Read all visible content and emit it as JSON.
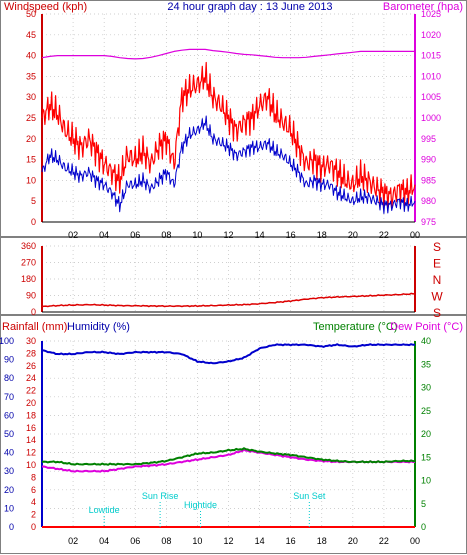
{
  "colors": {
    "wind_gust": "#ff0000",
    "wind_avg": "#0000cc",
    "barometer": "#dd00dd",
    "direction": "#dd0000",
    "rainfall": "#ff0000",
    "humidity": "#0000cc",
    "temperature": "#008000",
    "dew_point": "#dd00dd",
    "tide": "#00cccc",
    "grid": "#c0c0c0"
  },
  "chart_data": [
    {
      "type": "line",
      "title": "24 hour graph day : 13 June 2013",
      "ylabel_left": "Windspeed (kph)",
      "ylabel_right": "Barometer (hpa)",
      "ylim_left": [
        0,
        50
      ],
      "ylim_right": [
        975,
        1025
      ],
      "yticks_left": [
        "50",
        "45",
        "40",
        "35",
        "30",
        "25",
        "20",
        "15",
        "10",
        "5",
        "0"
      ],
      "yticks_right": [
        "1025",
        "1020",
        "1015",
        "1010",
        "1005",
        "1000",
        "995",
        "990",
        "985",
        "980",
        "975"
      ],
      "grid": true,
      "x": [
        0,
        0.5,
        1,
        1.5,
        2,
        2.5,
        3,
        3.5,
        4,
        4.5,
        5,
        5.5,
        6,
        6.5,
        7,
        7.5,
        8,
        8.5,
        9,
        9.5,
        10,
        10.5,
        11,
        11.5,
        12,
        12.5,
        13,
        13.5,
        14,
        14.5,
        15,
        15.5,
        16,
        16.5,
        17,
        17.5,
        18,
        18.5,
        19,
        19.5,
        20,
        20.5,
        21,
        21.5,
        22,
        22.5,
        23,
        23.5,
        24
      ],
      "series": [
        {
          "key": "gust",
          "values": [
            25,
            28,
            26,
            22,
            20,
            18,
            20,
            17,
            14,
            12,
            10,
            16,
            15,
            17,
            14,
            18,
            20,
            14,
            30,
            32,
            33,
            35,
            30,
            28,
            25,
            22,
            24,
            25,
            28,
            30,
            26,
            24,
            22,
            18,
            14,
            15,
            13,
            14,
            12,
            10,
            9,
            11,
            10,
            8,
            7,
            6,
            8,
            7,
            9
          ]
        },
        {
          "key": "avg",
          "values": [
            12,
            16,
            15,
            13,
            12,
            11,
            12,
            10,
            9,
            7,
            4,
            9,
            9,
            10,
            8,
            10,
            12,
            9,
            18,
            21,
            22,
            24,
            20,
            19,
            18,
            16,
            17,
            18,
            18,
            19,
            17,
            16,
            14,
            12,
            9,
            10,
            9,
            9,
            7,
            6,
            5,
            6,
            6,
            5,
            4,
            4,
            5,
            4,
            5
          ]
        },
        {
          "key": "barometer",
          "axis": "right",
          "values": [
            1014.5,
            1014.8,
            1015,
            1015,
            1015,
            1015,
            1015,
            1015,
            1015,
            1014.8,
            1014.5,
            1014.3,
            1014.2,
            1014.3,
            1014.6,
            1015,
            1015.5,
            1016,
            1016.3,
            1016.5,
            1016.5,
            1016.5,
            1016.2,
            1016,
            1015.8,
            1015.5,
            1015.3,
            1015.2,
            1015,
            1014.8,
            1014.6,
            1014.5,
            1014.5,
            1014.5,
            1014.6,
            1014.8,
            1015,
            1015.2,
            1015.4,
            1015.6,
            1015.8,
            1016,
            1016,
            1016,
            1016,
            1016,
            1016,
            1016,
            1016
          ]
        }
      ],
      "xticks": [
        "02",
        "04",
        "06",
        "08",
        "10",
        "12",
        "14",
        "16",
        "18",
        "20",
        "22",
        "00"
      ]
    },
    {
      "type": "line",
      "ylim": [
        0,
        360
      ],
      "yticks": [
        "360",
        "270",
        "180",
        "90",
        "0"
      ],
      "direction_labels": [
        "S",
        "E",
        "N",
        "W",
        "S"
      ],
      "x": [
        0,
        1,
        2,
        3,
        4,
        5,
        6,
        7,
        8,
        9,
        10,
        11,
        12,
        13,
        14,
        15,
        16,
        17,
        18,
        19,
        20,
        21,
        22,
        23,
        24
      ],
      "series": [
        {
          "key": "direction",
          "values": [
            30,
            35,
            38,
            40,
            38,
            35,
            34,
            33,
            32,
            32,
            33,
            35,
            38,
            40,
            45,
            52,
            60,
            70,
            78,
            82,
            85,
            88,
            92,
            95,
            100
          ]
        }
      ]
    },
    {
      "type": "line",
      "ylabel_left": "Rainfall (mm)",
      "ylabel_left2": "Humidity (%)",
      "ylabel_right": "Temperature (°C)",
      "ylabel_right2": "Dew Point (°C)",
      "ylim_left": [
        0,
        30
      ],
      "ylim_humidity": [
        0,
        100
      ],
      "ylim_right": [
        0,
        40
      ],
      "yticks_rain": [
        "30",
        "28",
        "26",
        "24",
        "22",
        "20",
        "18",
        "16",
        "14",
        "12",
        "10",
        "8",
        "6",
        "4",
        "2",
        "0"
      ],
      "yticks_humidity": [
        "100",
        "90",
        "80",
        "70",
        "60",
        "50",
        "40",
        "30",
        "20",
        "10",
        "0"
      ],
      "yticks_right": [
        "40",
        "35",
        "30",
        "25",
        "20",
        "15",
        "10",
        "5",
        "0"
      ],
      "x": [
        0,
        1,
        2,
        3,
        4,
        5,
        6,
        7,
        8,
        9,
        10,
        11,
        12,
        13,
        14,
        15,
        16,
        17,
        18,
        19,
        20,
        21,
        22,
        23,
        24
      ],
      "series": [
        {
          "key": "humidity",
          "axis": "humidity",
          "values": [
            95,
            93,
            93,
            94,
            94,
            93,
            94,
            94,
            94,
            93,
            89,
            88,
            89,
            91,
            96,
            98,
            98,
            98,
            97,
            98,
            97,
            98,
            98,
            98,
            98
          ]
        },
        {
          "key": "temperature",
          "axis": "right",
          "values": [
            14,
            14,
            13.5,
            13.5,
            13.5,
            13.5,
            13.5,
            13.8,
            14.2,
            15,
            15.8,
            16,
            16.5,
            16.8,
            16.2,
            15.8,
            15.5,
            15,
            14.5,
            14.2,
            14,
            14,
            14,
            14.2,
            14.2
          ]
        },
        {
          "key": "dew_point",
          "axis": "right",
          "values": [
            13,
            12.5,
            12,
            12,
            12,
            12.5,
            13,
            13.2,
            13.5,
            14,
            14.5,
            15,
            15.5,
            16.5,
            16,
            15.5,
            15,
            14.5,
            14.2,
            14,
            14,
            14,
            14,
            14,
            14
          ]
        },
        {
          "key": "rainfall",
          "axis": "left",
          "values": [
            0,
            0,
            0,
            0,
            0,
            0,
            0,
            0,
            0,
            0,
            0,
            0,
            0,
            0,
            0,
            0,
            0,
            0,
            0,
            0,
            0,
            0,
            0,
            0,
            0
          ]
        }
      ],
      "xticks": [
        "02",
        "04",
        "06",
        "08",
        "10",
        "12",
        "14",
        "16",
        "18",
        "20",
        "22",
        "00"
      ],
      "annotations": [
        {
          "label": "Lowtide",
          "hour": 4.0
        },
        {
          "label": "Sun Rise",
          "hour": 7.6
        },
        {
          "label": "Hightide",
          "hour": 10.2
        },
        {
          "label": "Sun Set",
          "hour": 17.2
        }
      ]
    }
  ]
}
